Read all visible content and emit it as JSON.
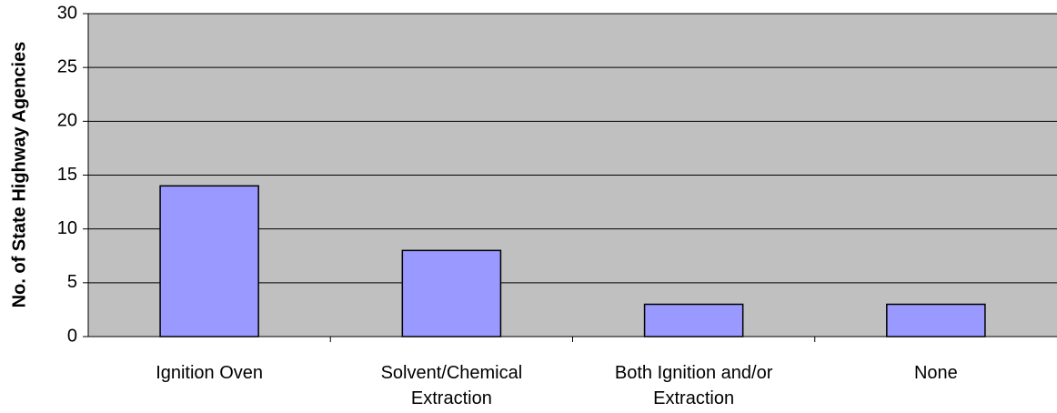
{
  "chart_data": {
    "type": "bar",
    "y_label": "No. of State Highway Agencies",
    "categories": [
      "Ignition Oven",
      "Solvent/Chemical Extraction",
      "Both Ignition and/or Extraction",
      "None"
    ],
    "values": [
      14,
      8,
      3,
      3
    ],
    "color": "#9999ff",
    "plot_background": "#c0c0c0",
    "ylim": [
      0,
      30
    ],
    "yticks": [
      0,
      5,
      10,
      15,
      20,
      25,
      30
    ],
    "grid": true
  }
}
